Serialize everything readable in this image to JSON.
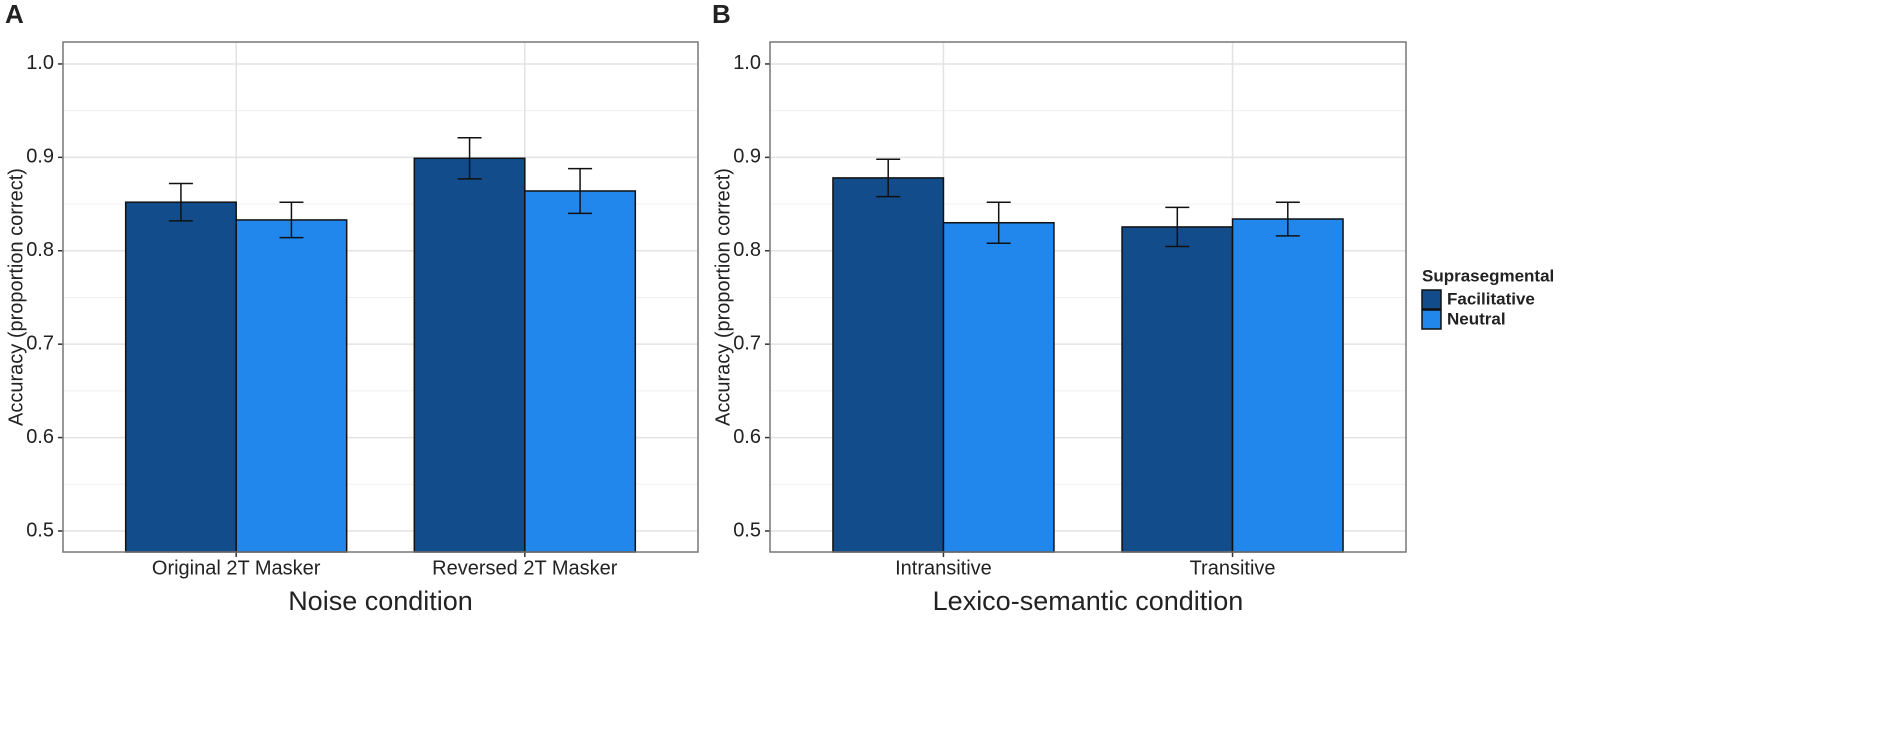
{
  "chart_data": [
    {
      "type": "bar",
      "panel_label": "A",
      "xlabel": "Noise condition",
      "ylabel": "Accuracy (proportion correct)",
      "categories": [
        "Original 2T Masker",
        "Reversed 2T Masker"
      ],
      "series": [
        {
          "color": "#124c8a",
          "values": [
            0.852,
            0.899
          ],
          "errors": [
            0.02,
            0.022
          ]
        },
        {
          "color": "#2287ec",
          "values": [
            0.833,
            0.864
          ],
          "errors": [
            0.019,
            0.024
          ]
        }
      ],
      "ylim": [
        0.4775,
        1.0235
      ],
      "yticks": [
        0.5,
        0.6,
        0.7,
        0.8,
        0.9,
        {
          "value": 1.0,
          "label": "1.0"
        }
      ],
      "yminorticks": [
        0.55,
        0.65,
        0.75,
        0.85,
        0.95
      ],
      "grid": true
    },
    {
      "type": "bar",
      "panel_label": "B",
      "xlabel": "Lexico-semantic condition",
      "ylabel": "Accuracy (proportion correct)",
      "categories": [
        "Intransitive",
        "Transitive"
      ],
      "legend_title": "Suprasegmental",
      "legend_position": "right",
      "series": [
        {
          "name": "Facilitative",
          "color": "#124c8a",
          "values": [
            0.878,
            0.8255
          ],
          "errors": [
            0.02,
            0.021
          ]
        },
        {
          "name": "Neutral",
          "color": "#2287ec",
          "values": [
            0.83,
            0.834
          ],
          "errors": [
            0.022,
            0.018
          ]
        }
      ],
      "ylim": [
        0.4775,
        1.0235
      ],
      "yticks": [
        0.5,
        0.6,
        0.7,
        0.8,
        0.9,
        {
          "value": 1.0,
          "label": "1.0"
        }
      ],
      "yminorticks": [
        0.55,
        0.65,
        0.75,
        0.85,
        0.95
      ],
      "grid": true
    }
  ]
}
